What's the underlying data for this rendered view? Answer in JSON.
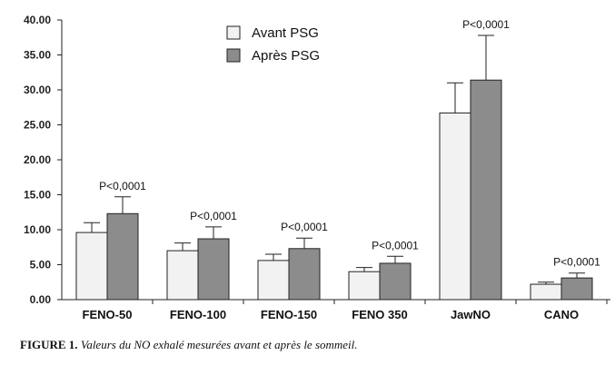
{
  "chart_data": {
    "type": "bar",
    "categories": [
      "FENO-50",
      "FENO-100",
      "FENO-150",
      "FENO 350",
      "JawNO",
      "CANO"
    ],
    "series": [
      {
        "name": "Avant PSG",
        "values": [
          9.6,
          7.0,
          5.6,
          4.0,
          26.7,
          2.2
        ],
        "errors": [
          1.4,
          1.1,
          0.9,
          0.6,
          4.3,
          0.3
        ],
        "color": "#f2f2f2"
      },
      {
        "name": "Après PSG",
        "values": [
          12.3,
          8.7,
          7.3,
          5.2,
          31.4,
          3.1
        ],
        "errors": [
          2.4,
          1.7,
          1.5,
          1.0,
          6.4,
          0.7
        ],
        "color": "#8c8c8c"
      }
    ],
    "annotations": [
      "P<0,0001",
      "P<0,0001",
      "P<0,0001",
      "P<0,0001",
      "P<0,0001",
      "P<0,0001"
    ],
    "yticks": [
      "0.00",
      "5.00",
      "10.00",
      "15.00",
      "20.00",
      "25.00",
      "30.00",
      "35.00",
      "40.00"
    ],
    "ylim": [
      0,
      40
    ],
    "title": "",
    "xlabel": "",
    "ylabel": "",
    "legend_position": "top-center",
    "grid": false
  },
  "caption": {
    "lead": "FIGURE 1.",
    "text": "Valeurs du NO exhalé mesurées avant et après le sommeil."
  }
}
